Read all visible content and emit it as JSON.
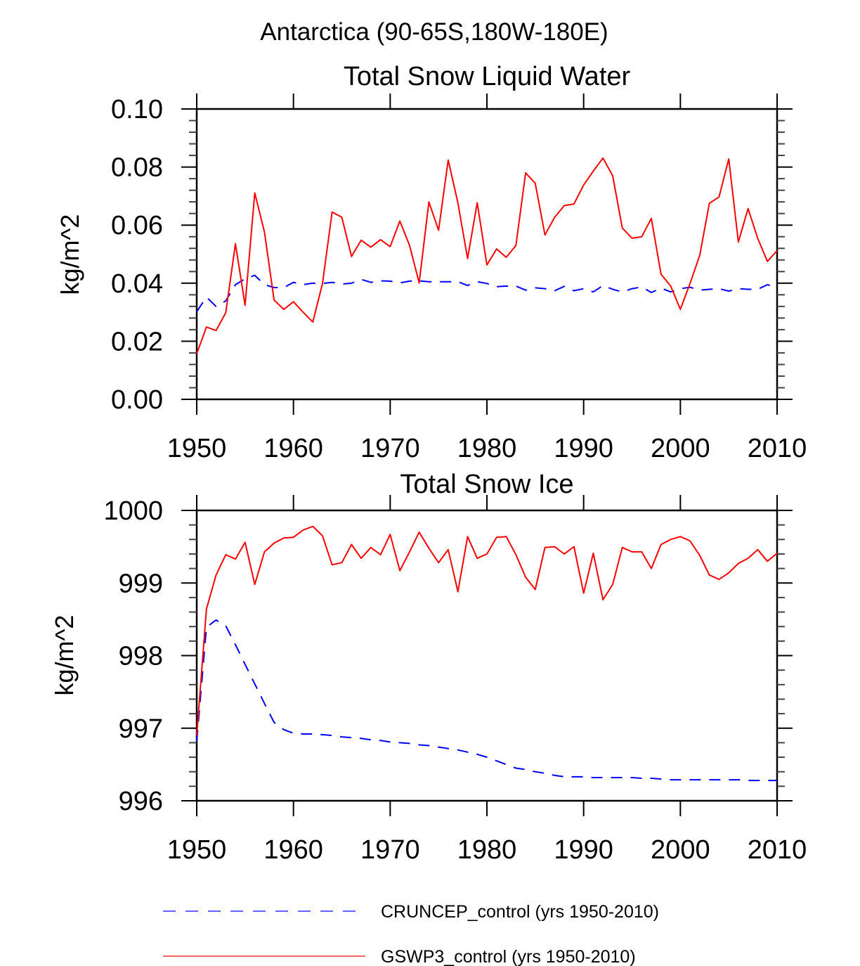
{
  "page_title": "Antarctica (90-65S,180W-180E)",
  "legend": {
    "placement": "bottom",
    "entries": [
      {
        "label": "CRUNCEP_control (yrs 1950-2010)",
        "color": "#0000ff",
        "style": "dashed"
      },
      {
        "label": "GSWP3_control (yrs 1950-2010)",
        "color": "#ff0000",
        "style": "solid"
      }
    ]
  },
  "chart_data": [
    {
      "type": "line",
      "title": "Total Snow Liquid Water",
      "xlabel": "",
      "ylabel": "kg/m^2",
      "xlim": [
        1950,
        2010
      ],
      "ylim": [
        0.0,
        0.1
      ],
      "x_ticks": [
        1950,
        1960,
        1970,
        1980,
        1990,
        2000,
        2010
      ],
      "x_tick_labels": [
        "1950",
        "1960",
        "1970",
        "1980",
        "1990",
        "2000",
        "2010"
      ],
      "y_ticks": [
        0.0,
        0.02,
        0.04,
        0.06,
        0.08,
        0.1
      ],
      "y_tick_labels": [
        "0.00",
        "0.02",
        "0.04",
        "0.06",
        "0.08",
        "0.10"
      ],
      "y_minor_per_major": 5,
      "grid": false,
      "x_start": 1950,
      "series": [
        {
          "name": "CRUNCEP_control (yrs 1950-2010)",
          "color": "#0000ff",
          "style": "dashed",
          "values": [
            0.0302,
            0.0352,
            0.032,
            0.0339,
            0.0395,
            0.0415,
            0.0427,
            0.0395,
            0.0385,
            0.0385,
            0.0403,
            0.0395,
            0.04,
            0.0399,
            0.0403,
            0.0397,
            0.04,
            0.0413,
            0.0403,
            0.0408,
            0.0407,
            0.0401,
            0.0407,
            0.0408,
            0.0405,
            0.0405,
            0.0405,
            0.0405,
            0.0392,
            0.0405,
            0.0399,
            0.0388,
            0.039,
            0.039,
            0.0376,
            0.0384,
            0.0381,
            0.0374,
            0.0389,
            0.0374,
            0.0381,
            0.037,
            0.0392,
            0.0379,
            0.037,
            0.0381,
            0.0387,
            0.0368,
            0.0383,
            0.037,
            0.0381,
            0.0386,
            0.0376,
            0.0379,
            0.0381,
            0.0373,
            0.0381,
            0.0379,
            0.0379,
            0.0395,
            0.0384
          ]
        },
        {
          "name": "GSWP3_control (yrs 1950-2010)",
          "color": "#ff0000",
          "style": "solid",
          "values": [
            0.0157,
            0.0249,
            0.0237,
            0.0298,
            0.0536,
            0.0324,
            0.0711,
            0.0576,
            0.0342,
            0.031,
            0.0336,
            0.03,
            0.0266,
            0.0399,
            0.0645,
            0.0627,
            0.0492,
            0.0548,
            0.0524,
            0.055,
            0.0526,
            0.0614,
            0.053,
            0.0401,
            0.068,
            0.0582,
            0.0824,
            0.0677,
            0.0485,
            0.0677,
            0.0463,
            0.0518,
            0.0489,
            0.053,
            0.078,
            0.0744,
            0.0566,
            0.0627,
            0.0667,
            0.0673,
            0.0738,
            0.0786,
            0.0831,
            0.077,
            0.059,
            0.0555,
            0.056,
            0.0623,
            0.0431,
            0.039,
            0.031,
            0.0399,
            0.0496,
            0.0675,
            0.0697,
            0.0828,
            0.0542,
            0.0657,
            0.0554,
            0.0475,
            0.0512
          ]
        }
      ]
    },
    {
      "type": "line",
      "title": "Total Snow Ice",
      "xlabel": "",
      "ylabel": "kg/m^2",
      "xlim": [
        1950,
        2010
      ],
      "ylim": [
        996,
        1000
      ],
      "x_ticks": [
        1950,
        1960,
        1970,
        1980,
        1990,
        2000,
        2010
      ],
      "x_tick_labels": [
        "1950",
        "1960",
        "1970",
        "1980",
        "1990",
        "2000",
        "2010"
      ],
      "y_ticks": [
        996,
        997,
        998,
        999,
        1000
      ],
      "y_tick_labels": [
        "996",
        "997",
        "998",
        "999",
        "1000"
      ],
      "y_minor_per_major": 5,
      "grid": false,
      "x_start": 1950,
      "series": [
        {
          "name": "CRUNCEP_control (yrs 1950-2010)",
          "color": "#0000ff",
          "style": "dashed",
          "values": [
            996.82,
            998.39,
            998.49,
            998.41,
            998.15,
            997.88,
            997.61,
            997.34,
            997.08,
            996.98,
            996.93,
            996.92,
            996.92,
            996.91,
            996.9,
            996.88,
            996.87,
            996.86,
            996.84,
            996.83,
            996.81,
            996.8,
            996.79,
            996.77,
            996.76,
            996.74,
            996.72,
            996.7,
            996.67,
            996.64,
            996.6,
            996.55,
            996.5,
            996.45,
            996.43,
            996.4,
            996.38,
            996.35,
            996.33,
            996.33,
            996.33,
            996.32,
            996.32,
            996.32,
            996.32,
            996.32,
            996.31,
            996.31,
            996.3,
            996.29,
            996.29,
            996.29,
            996.29,
            996.29,
            996.29,
            996.29,
            996.29,
            996.28,
            996.28,
            996.28,
            996.28
          ]
        },
        {
          "name": "GSWP3_control (yrs 1950-2010)",
          "color": "#ff0000",
          "style": "solid",
          "values": [
            996.9,
            998.64,
            999.11,
            999.39,
            999.33,
            999.56,
            998.98,
            999.43,
            999.55,
            999.62,
            999.63,
            999.73,
            999.78,
            999.65,
            999.25,
            999.28,
            999.53,
            999.34,
            999.49,
            999.39,
            999.67,
            999.17,
            999.43,
            999.7,
            999.48,
            999.28,
            999.46,
            998.88,
            999.64,
            999.34,
            999.4,
            999.63,
            999.64,
            999.39,
            999.08,
            998.91,
            999.49,
            999.5,
            999.4,
            999.5,
            998.86,
            999.41,
            998.77,
            998.98,
            999.49,
            999.43,
            999.43,
            999.2,
            999.53,
            999.6,
            999.64,
            999.58,
            999.38,
            999.11,
            999.05,
            999.14,
            999.27,
            999.34,
            999.46,
            999.3,
            999.41
          ]
        }
      ]
    }
  ]
}
